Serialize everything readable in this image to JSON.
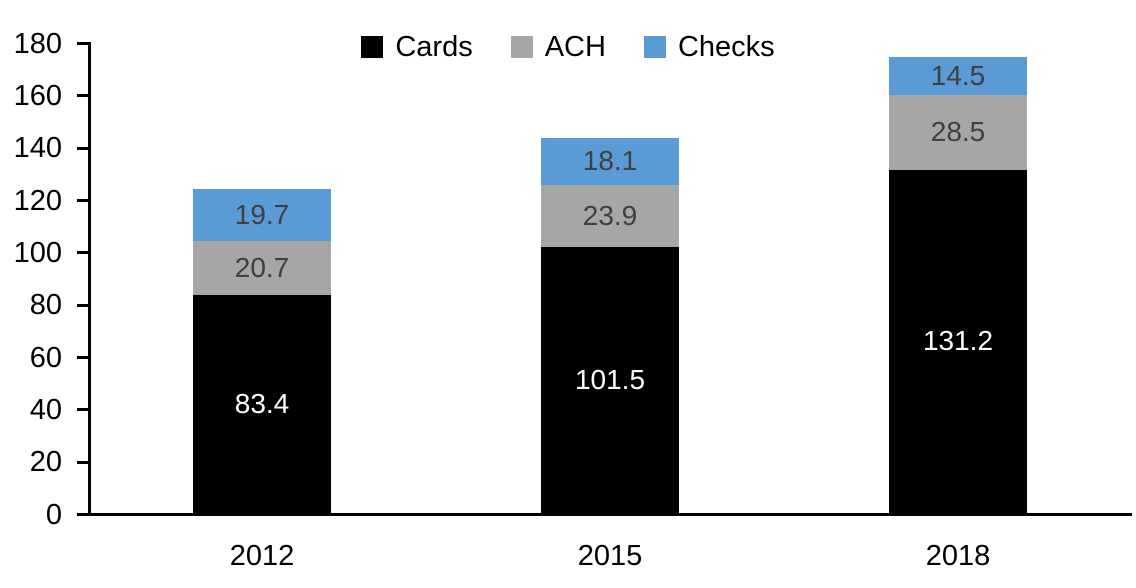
{
  "chart_data": {
    "type": "bar",
    "stacked": true,
    "title": "",
    "xlabel": "",
    "ylabel": "",
    "categories": [
      "2012",
      "2015",
      "2018"
    ],
    "series": [
      {
        "name": "Cards",
        "color": "#000000",
        "label_color": "#ffffff",
        "values": [
          83.4,
          101.5,
          131.2
        ]
      },
      {
        "name": "ACH",
        "color": "#a6a6a6",
        "label_color": "#404040",
        "values": [
          20.7,
          23.9,
          28.5
        ]
      },
      {
        "name": "Checks",
        "color": "#5b9bd5",
        "label_color": "#404040",
        "values": [
          19.7,
          18.1,
          14.5
        ]
      }
    ],
    "totals": [
      123.8,
      143.5,
      174.2
    ],
    "ylim": [
      0,
      180
    ],
    "yticks": [
      0,
      20,
      40,
      60,
      80,
      100,
      120,
      140,
      160,
      180
    ],
    "grid": false,
    "data_labels": true,
    "legend_position": "top-center",
    "colors": {
      "axis": "#000000",
      "background": "#ffffff"
    }
  }
}
